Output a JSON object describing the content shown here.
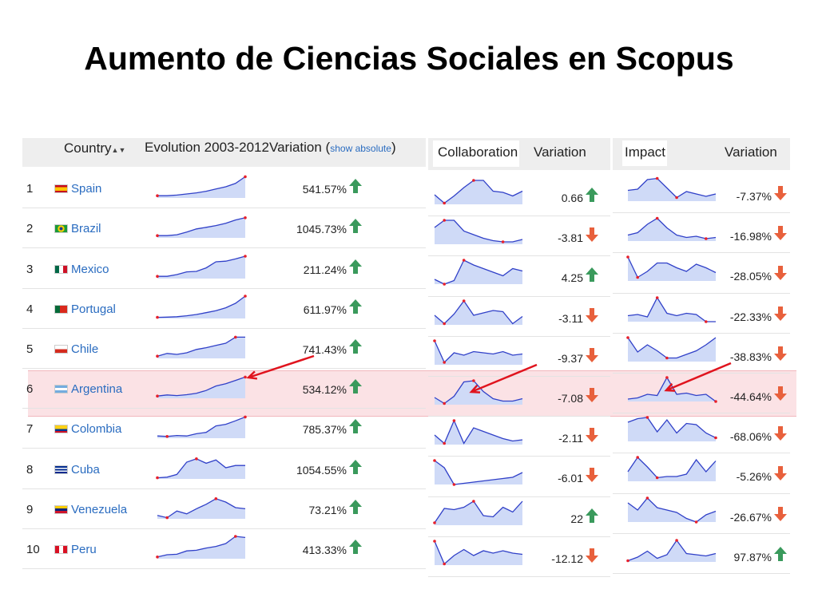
{
  "title": "Aumento de Ciencias Sociales en Scopus",
  "colors": {
    "spark_fill": "#cfdaf7",
    "spark_line": "#3040c8",
    "spark_dot": "#e8202a",
    "up_arrow": "#3a9a5c",
    "down_arrow": "#e8603c",
    "red_arrow": "#e0141e",
    "highlight": "#f3c6cc"
  },
  "headers": {
    "country": "Country",
    "evolution": "Evolution 2003-2012",
    "variation_prefix": "Variation (",
    "show_absolute": "show absolute",
    "variation_suffix": ")",
    "collaboration": "Collaboration",
    "collab_variation": "Variation",
    "impact": "Impact",
    "impact_variation": "Variation"
  },
  "rows": [
    {
      "rank": "1",
      "country": "Spain",
      "flag": "spain",
      "variation": "541.57%",
      "collab": "0.66",
      "impact": "-7.37%"
    },
    {
      "rank": "2",
      "country": "Brazil",
      "flag": "brazil",
      "variation": "1045.73%",
      "collab": "-3.81",
      "impact": "-16.98%"
    },
    {
      "rank": "3",
      "country": "Mexico",
      "flag": "mexico",
      "variation": "211.24%",
      "collab": "4.25",
      "impact": "-28.05%"
    },
    {
      "rank": "4",
      "country": "Portugal",
      "flag": "portugal",
      "variation": "611.97%",
      "collab": "-3.11",
      "impact": "-22.33%"
    },
    {
      "rank": "5",
      "country": "Chile",
      "flag": "chile",
      "variation": "741.43%",
      "collab": "-9.37",
      "impact": "-38.83%"
    },
    {
      "rank": "6",
      "country": "Argentina",
      "flag": "argentina",
      "variation": "534.12%",
      "collab": "-7.08",
      "impact": "-44.64%"
    },
    {
      "rank": "7",
      "country": "Colombia",
      "flag": "colombia",
      "variation": "785.37%",
      "collab": "-2.11",
      "impact": "-68.06%"
    },
    {
      "rank": "8",
      "country": "Cuba",
      "flag": "cuba",
      "variation": "1054.55%",
      "collab": "-6.01",
      "impact": "-5.26%"
    },
    {
      "rank": "9",
      "country": "Venezuela",
      "flag": "venezuela",
      "variation": "73.21%",
      "collab": "22",
      "impact": "-26.67%"
    },
    {
      "rank": "10",
      "country": "Peru",
      "flag": "peru",
      "variation": "413.33%",
      "collab": "-12.12",
      "impact": "97.87%"
    }
  ],
  "chart_data": [
    {
      "type": "line",
      "title": "Evolution 2003-2012",
      "x": [
        2003,
        2004,
        2005,
        2006,
        2007,
        2008,
        2009,
        2010,
        2011,
        2012
      ],
      "series": [
        {
          "name": "Spain",
          "values": [
            10,
            10,
            13,
            18,
            23,
            30,
            40,
            50,
            65,
            95
          ]
        },
        {
          "name": "Brazil",
          "values": [
            10,
            10,
            14,
            26,
            40,
            47,
            55,
            65,
            80,
            90
          ]
        },
        {
          "name": "Mexico",
          "values": [
            10,
            10,
            18,
            30,
            32,
            48,
            75,
            78,
            88,
            100
          ]
        },
        {
          "name": "Portugal",
          "values": [
            5,
            6,
            8,
            12,
            18,
            26,
            35,
            48,
            68,
            100
          ]
        },
        {
          "name": "Chile",
          "values": [
            10,
            22,
            18,
            25,
            40,
            48,
            58,
            68,
            95,
            95
          ]
        },
        {
          "name": "Argentina",
          "values": [
            10,
            15,
            12,
            16,
            22,
            35,
            55,
            65,
            80,
            95
          ]
        },
        {
          "name": "Colombia",
          "values": [
            10,
            8,
            12,
            10,
            20,
            26,
            55,
            62,
            78,
            95
          ]
        },
        {
          "name": "Cuba",
          "values": [
            5,
            8,
            20,
            75,
            90,
            70,
            85,
            50,
            60,
            60
          ]
        },
        {
          "name": "Venezuela",
          "values": [
            15,
            5,
            35,
            22,
            45,
            65,
            90,
            75,
            50,
            45
          ]
        },
        {
          "name": "Peru",
          "values": [
            8,
            18,
            20,
            35,
            38,
            48,
            55,
            68,
            100,
            95
          ]
        }
      ]
    },
    {
      "type": "line",
      "title": "Collaboration",
      "x": [
        2003,
        2004,
        2005,
        2006,
        2007,
        2008,
        2009,
        2010,
        2011,
        2012
      ],
      "series": [
        {
          "name": "Spain",
          "values": [
            40,
            5,
            35,
            70,
            100,
            100,
            55,
            50,
            35,
            55
          ]
        },
        {
          "name": "Brazil",
          "values": [
            70,
            100,
            100,
            55,
            40,
            25,
            15,
            10,
            10,
            20
          ]
        },
        {
          "name": "Mexico",
          "values": [
            20,
            0,
            15,
            100,
            80,
            65,
            50,
            35,
            65,
            55
          ]
        },
        {
          "name": "Portugal",
          "values": [
            40,
            5,
            45,
            100,
            40,
            50,
            60,
            55,
            5,
            35
          ]
        },
        {
          "name": "Chile",
          "values": [
            100,
            10,
            50,
            40,
            55,
            50,
            45,
            55,
            40,
            45
          ]
        },
        {
          "name": "Argentina",
          "values": [
            30,
            5,
            35,
            95,
            100,
            55,
            25,
            15,
            15,
            25
          ]
        },
        {
          "name": "Colombia",
          "values": [
            40,
            5,
            100,
            5,
            70,
            55,
            40,
            25,
            15,
            20
          ]
        },
        {
          "name": "Cuba",
          "values": [
            100,
            70,
            0,
            5,
            10,
            15,
            20,
            25,
            30,
            50
          ]
        },
        {
          "name": "Venezuela",
          "values": [
            10,
            70,
            65,
            75,
            100,
            40,
            35,
            75,
            55,
            100
          ]
        },
        {
          "name": "Peru",
          "values": [
            100,
            5,
            40,
            65,
            40,
            60,
            50,
            60,
            50,
            45
          ]
        }
      ]
    },
    {
      "type": "line",
      "title": "Impact",
      "x": [
        2003,
        2004,
        2005,
        2006,
        2007,
        2008,
        2009,
        2010,
        2011,
        2012
      ],
      "series": [
        {
          "name": "Spain",
          "values": [
            45,
            50,
            90,
            95,
            55,
            15,
            40,
            30,
            20,
            30
          ]
        },
        {
          "name": "Brazil",
          "values": [
            25,
            35,
            70,
            95,
            55,
            25,
            15,
            20,
            10,
            15
          ]
        },
        {
          "name": "Mexico",
          "values": [
            100,
            15,
            40,
            75,
            75,
            55,
            40,
            70,
            55,
            35
          ]
        },
        {
          "name": "Portugal",
          "values": [
            25,
            30,
            20,
            100,
            35,
            25,
            35,
            30,
            0,
            0
          ]
        },
        {
          "name": "Chile",
          "values": [
            100,
            40,
            70,
            45,
            15,
            15,
            30,
            45,
            70,
            100
          ]
        },
        {
          "name": "Argentina",
          "values": [
            10,
            15,
            30,
            25,
            100,
            30,
            35,
            25,
            30,
            0
          ]
        },
        {
          "name": "Colombia",
          "values": [
            80,
            95,
            100,
            40,
            90,
            35,
            75,
            70,
            35,
            15
          ]
        },
        {
          "name": "Cuba",
          "values": [
            40,
            100,
            60,
            15,
            20,
            20,
            30,
            90,
            40,
            85
          ]
        },
        {
          "name": "Venezuela",
          "values": [
            80,
            50,
            100,
            60,
            50,
            40,
            15,
            0,
            30,
            45
          ]
        },
        {
          "name": "Peru",
          "values": [
            5,
            20,
            45,
            15,
            30,
            90,
            35,
            30,
            25,
            35
          ]
        }
      ]
    }
  ]
}
